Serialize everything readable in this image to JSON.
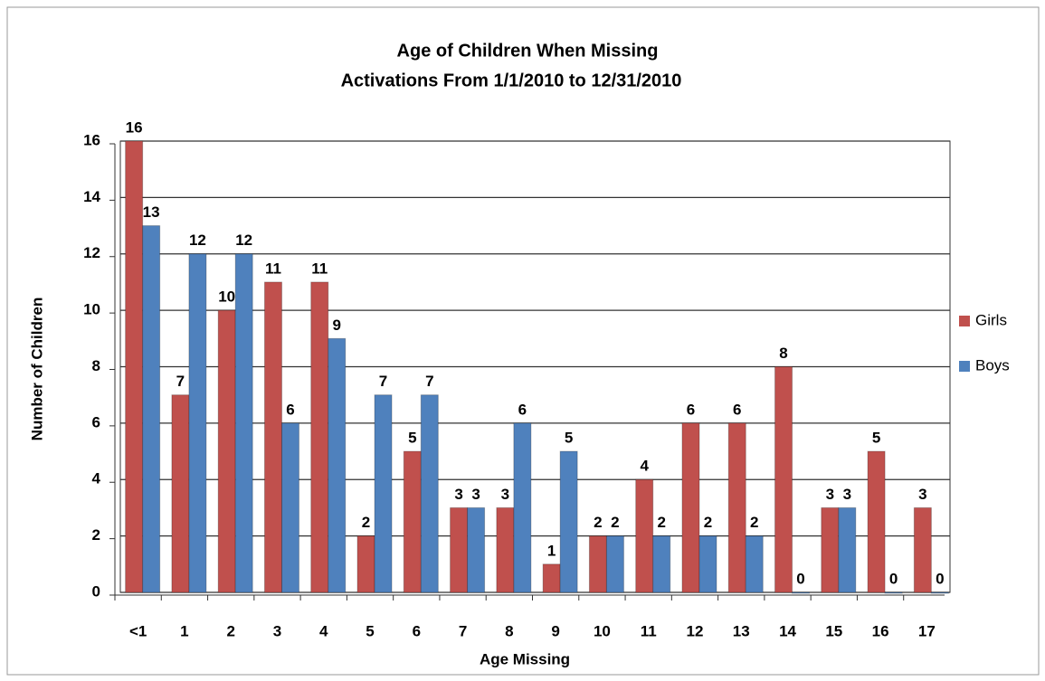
{
  "chart_data": {
    "type": "bar",
    "title": "Age of Children When Missing",
    "subtitle": "Activations From 1/1/2010  to 12/31/2010",
    "x_label": "Age Missing",
    "y_label": "Number of Children",
    "categories": [
      "<1",
      "1",
      "2",
      "3",
      "4",
      "5",
      "6",
      "7",
      "8",
      "9",
      "10",
      "11",
      "12",
      "13",
      "14",
      "15",
      "16",
      "17"
    ],
    "series": [
      {
        "name": "Girls",
        "color": "#c0504d",
        "values": [
          16,
          7,
          10,
          11,
          11,
          2,
          5,
          3,
          3,
          1,
          2,
          4,
          6,
          6,
          8,
          3,
          5,
          3
        ]
      },
      {
        "name": "Boys",
        "color": "#4f81bd",
        "values": [
          13,
          12,
          12,
          6,
          9,
          7,
          7,
          3,
          6,
          5,
          2,
          2,
          2,
          2,
          0,
          3,
          0,
          0
        ]
      }
    ],
    "ylim": [
      0,
      16
    ],
    "yticks": [
      0,
      2,
      4,
      6,
      8,
      10,
      12,
      14,
      16
    ],
    "grid": true,
    "legend": "right"
  }
}
